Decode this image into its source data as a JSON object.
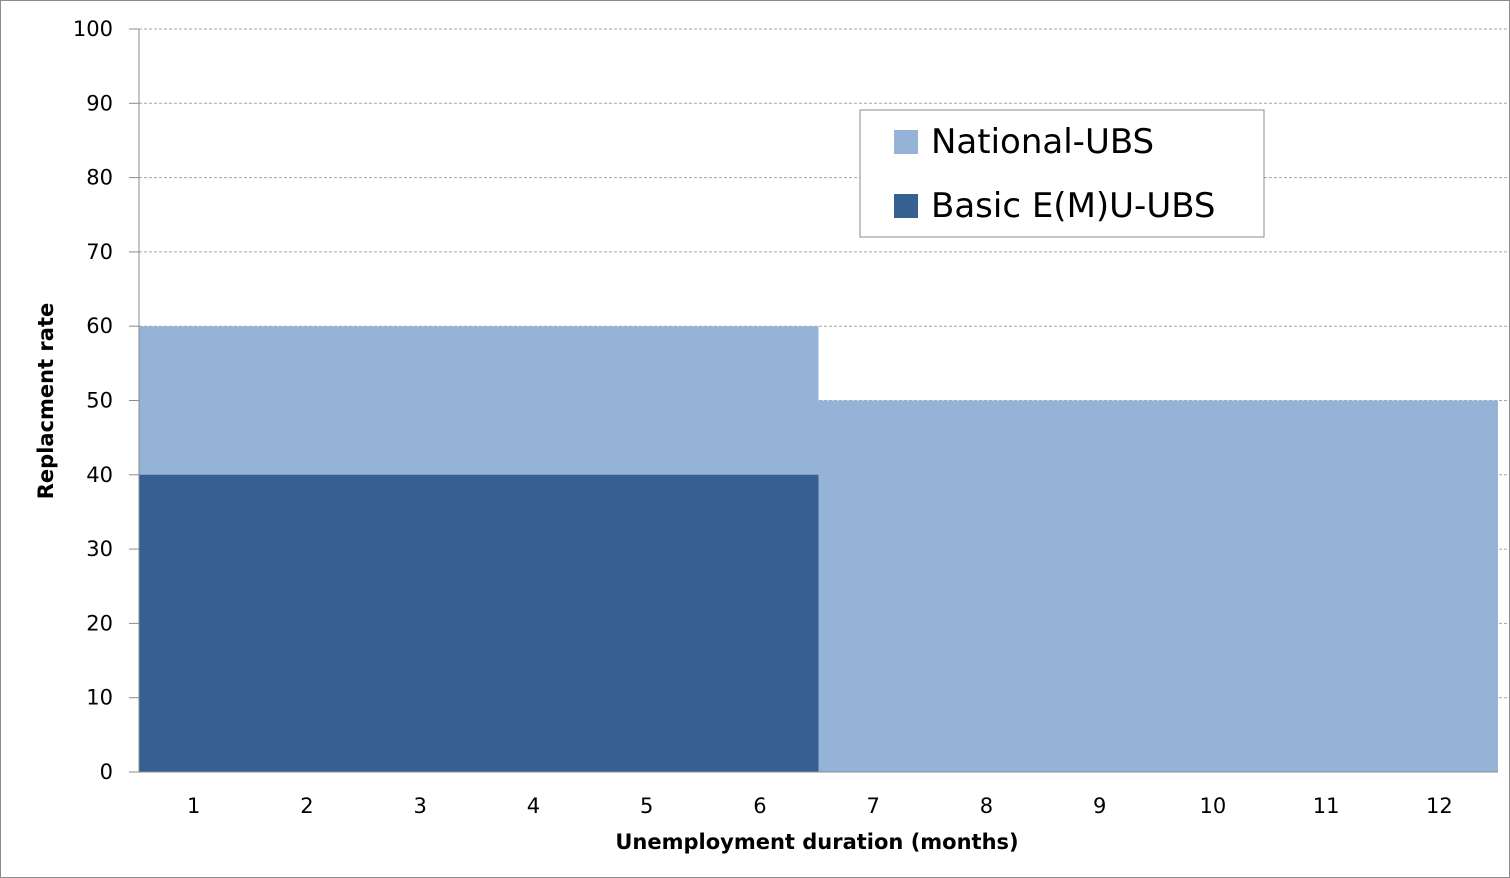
{
  "chart_data": {
    "type": "area",
    "title": "",
    "xlabel": "Unemployment duration (months)",
    "ylabel": "Replacment rate",
    "categories": [
      "1",
      "2",
      "3",
      "4",
      "5",
      "6",
      "7",
      "8",
      "9",
      "10",
      "11",
      "12"
    ],
    "x_values": [
      1,
      2,
      3,
      4,
      5,
      6,
      7,
      8,
      9,
      10,
      11,
      12
    ],
    "ylim": [
      0,
      100
    ],
    "yticks": [
      "0",
      "10",
      "20",
      "30",
      "40",
      "50",
      "60",
      "70",
      "80",
      "90",
      "100"
    ],
    "ytick_values": [
      0,
      10,
      20,
      30,
      40,
      50,
      60,
      70,
      80,
      90,
      100
    ],
    "grid": "horizontal dashed",
    "legend_position": "top-right",
    "series": [
      {
        "name": "National-UBS",
        "color": "#95B3D7",
        "values": [
          60,
          60,
          60,
          60,
          60,
          60,
          50,
          50,
          50,
          50,
          50,
          50
        ]
      },
      {
        "name": "Basic E(M)U-UBS",
        "color": "#366092",
        "values": [
          40,
          40,
          40,
          40,
          40,
          40,
          0,
          0,
          0,
          0,
          0,
          0
        ]
      }
    ]
  }
}
